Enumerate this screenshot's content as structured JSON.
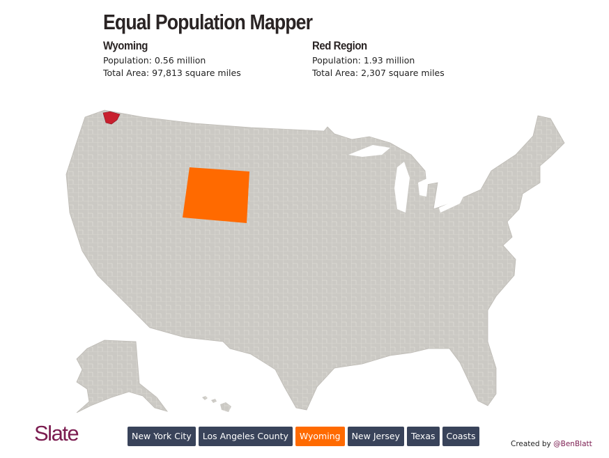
{
  "header": {
    "title": "Equal Population Mapper"
  },
  "panels": [
    {
      "title": "Wyoming",
      "population": "Population: 0.56 million",
      "area": "Total Area: 97,813 square miles"
    },
    {
      "title": "Red Region",
      "population": "Population: 1.93 million",
      "area": "Total Area: 2,307 square miles"
    }
  ],
  "buttons": [
    "New York City",
    "Los Angeles County",
    "Wyoming",
    "New Jersey",
    "Texas",
    "Coasts"
  ],
  "active_button": "Wyoming",
  "footer": {
    "logo": "Slate",
    "credit": "Created by",
    "handle": "@BenBlatt"
  }
}
